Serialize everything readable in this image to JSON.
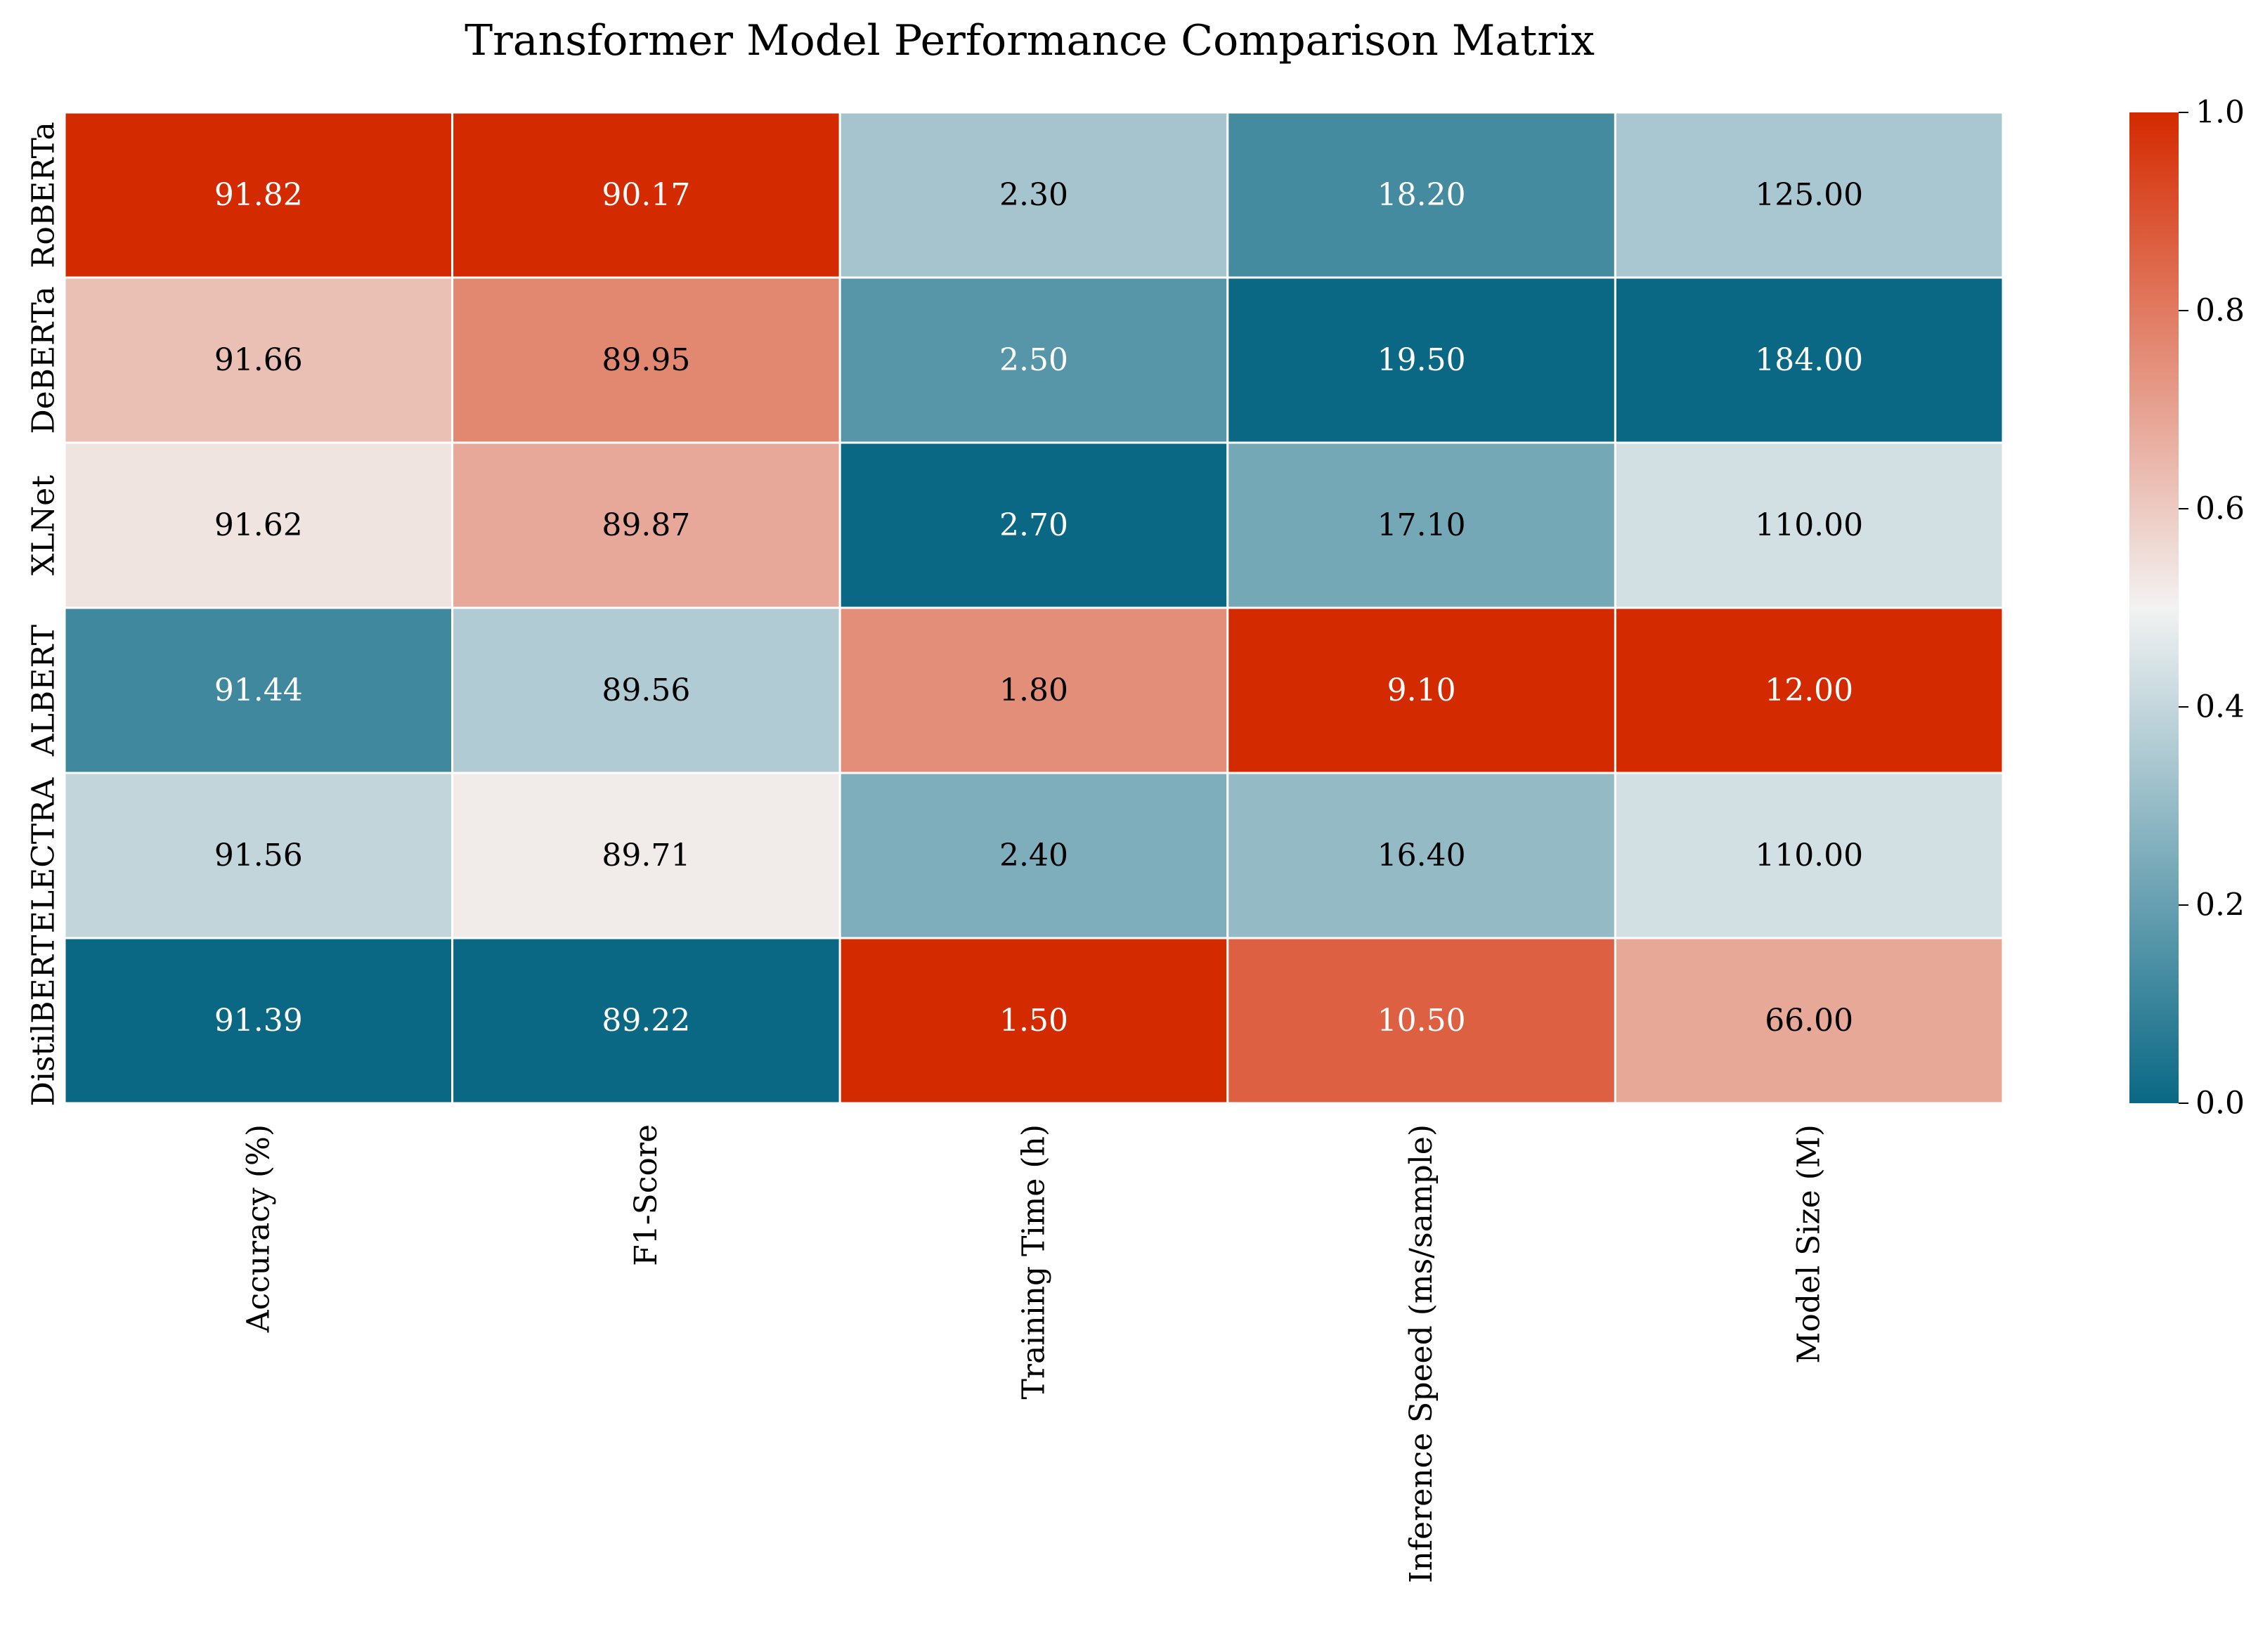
{
  "chart_data": {
    "type": "heatmap",
    "title": "Transformer Model Performance Comparison Matrix",
    "rows": [
      "RoBERTa",
      "DeBERTa",
      "XLNet",
      "ALBERT",
      "ELECTRA",
      "DistilBERT"
    ],
    "columns": [
      "Accuracy (%)",
      "F1-Score",
      "Training Time (h)",
      "Inference Speed (ms/sample)",
      "Model Size (M)"
    ],
    "values": [
      [
        91.82,
        90.17,
        2.3,
        18.2,
        125.0
      ],
      [
        91.66,
        89.95,
        2.5,
        19.5,
        184.0
      ],
      [
        91.62,
        89.87,
        2.7,
        17.1,
        110.0
      ],
      [
        91.44,
        89.56,
        1.8,
        9.1,
        12.0
      ],
      [
        91.56,
        89.71,
        2.4,
        16.4,
        110.0
      ],
      [
        91.39,
        89.22,
        1.5,
        10.5,
        66.0
      ]
    ],
    "value_labels": [
      [
        "91.82",
        "90.17",
        "2.30",
        "18.20",
        "125.00"
      ],
      [
        "91.66",
        "89.95",
        "2.50",
        "19.50",
        "184.00"
      ],
      [
        "91.62",
        "89.87",
        "2.70",
        "17.10",
        "110.00"
      ],
      [
        "91.44",
        "89.56",
        "1.80",
        "9.10",
        "12.00"
      ],
      [
        "91.56",
        "89.71",
        "2.40",
        "16.40",
        "110.00"
      ],
      [
        "91.39",
        "89.22",
        "1.50",
        "10.50",
        "66.00"
      ]
    ],
    "normalization": {
      "method": "column min-max",
      "inverted_columns": [
        "Training Time (h)",
        "Inference Speed (ms/sample)",
        "Model Size (M)"
      ]
    },
    "colorbar": {
      "range": [
        0,
        1
      ],
      "ticks": [
        "0.0",
        "0.2",
        "0.4",
        "0.6",
        "0.8",
        "1.0"
      ],
      "low_color": "#0a6885",
      "mid_color": "#f2f2f2",
      "high_color": "#d42a00"
    },
    "grid": false,
    "cell_border_color": "#ffffff"
  }
}
